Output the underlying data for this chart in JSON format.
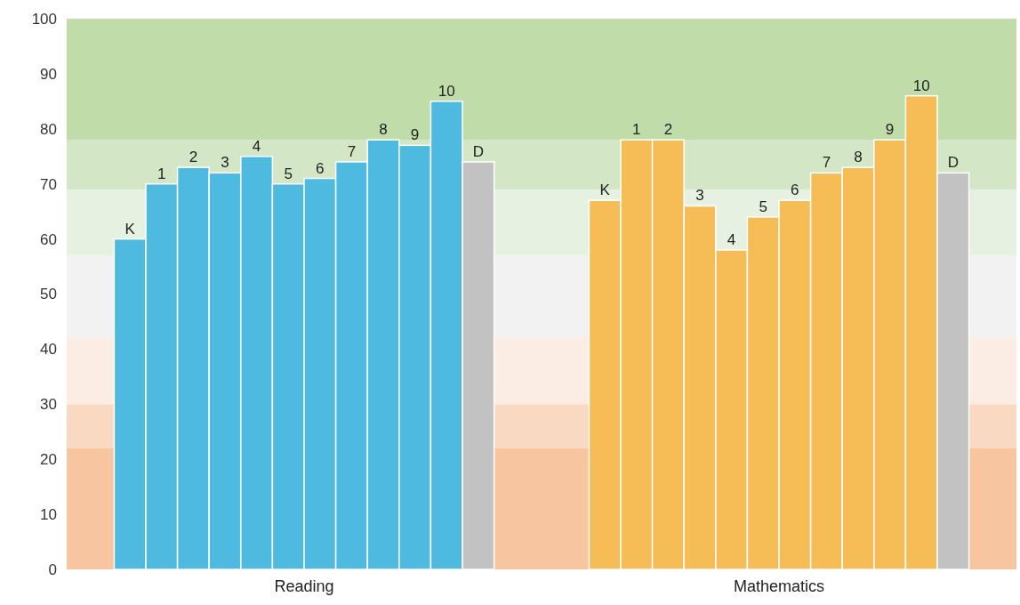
{
  "chart_data": {
    "type": "bar",
    "categories": [
      "Reading",
      "Mathematics"
    ],
    "ylim": [
      0,
      100
    ],
    "yticks": [
      0,
      10,
      20,
      30,
      40,
      50,
      60,
      70,
      80,
      90,
      100
    ],
    "series": [
      {
        "name": "K",
        "colors": [
          "#4ebae0",
          "#f6bd57"
        ],
        "values": [
          60,
          67
        ]
      },
      {
        "name": "1",
        "colors": [
          "#4ebae0",
          "#f6bd57"
        ],
        "values": [
          70,
          78
        ]
      },
      {
        "name": "2",
        "colors": [
          "#4ebae0",
          "#f6bd57"
        ],
        "values": [
          73,
          78
        ]
      },
      {
        "name": "3",
        "colors": [
          "#4ebae0",
          "#f6bd57"
        ],
        "values": [
          72,
          66
        ]
      },
      {
        "name": "4",
        "colors": [
          "#4ebae0",
          "#f6bd57"
        ],
        "values": [
          75,
          58
        ]
      },
      {
        "name": "5",
        "colors": [
          "#4ebae0",
          "#f6bd57"
        ],
        "values": [
          70,
          64
        ]
      },
      {
        "name": "6",
        "colors": [
          "#4ebae0",
          "#f6bd57"
        ],
        "values": [
          71,
          67
        ]
      },
      {
        "name": "7",
        "colors": [
          "#4ebae0",
          "#f6bd57"
        ],
        "values": [
          74,
          72
        ]
      },
      {
        "name": "8",
        "colors": [
          "#4ebae0",
          "#f6bd57"
        ],
        "values": [
          78,
          73
        ]
      },
      {
        "name": "9",
        "colors": [
          "#4ebae0",
          "#f6bd57"
        ],
        "values": [
          77,
          78
        ]
      },
      {
        "name": "10",
        "colors": [
          "#4ebae0",
          "#f6bd57"
        ],
        "values": [
          85,
          86
        ]
      },
      {
        "name": "D",
        "colors": [
          "#c2c2c2",
          "#c2c2c2"
        ],
        "values": [
          74,
          72
        ]
      }
    ],
    "bands": [
      {
        "axis": "y",
        "from": 0,
        "to": 22,
        "color": "#f7c5a0"
      },
      {
        "axis": "y",
        "from": 22,
        "to": 30,
        "color": "#f9d9c2"
      },
      {
        "axis": "y",
        "from": 30,
        "to": 42,
        "color": "#fbede3"
      },
      {
        "axis": "y",
        "from": 42,
        "to": 57,
        "color": "#f2f2f2"
      },
      {
        "axis": "y",
        "from": 57,
        "to": 69,
        "color": "#e7f1e1"
      },
      {
        "axis": "y",
        "from": 69,
        "to": 78,
        "color": "#d3e6c6"
      },
      {
        "axis": "y",
        "from": 78,
        "to": 100,
        "color": "#c0dda9"
      }
    ]
  }
}
